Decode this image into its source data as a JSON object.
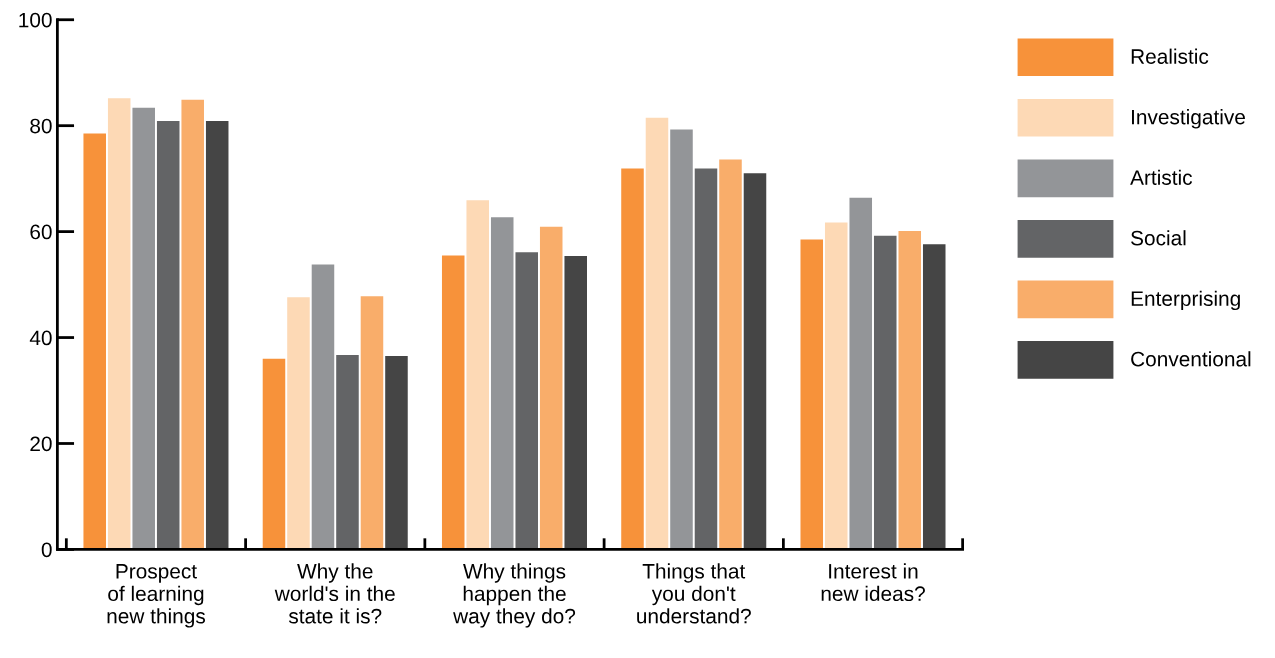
{
  "chart_data": {
    "type": "bar",
    "categories": [
      "Prospect\nof learning\nnew things",
      "Why the\nworld's in the\nstate it is?",
      "Why things\nhappen the\nway they do?",
      "Things that\nyou don't\nunderstand?",
      "Interest in\nnew ideas?"
    ],
    "series": [
      {
        "name": "Realistic",
        "color": "#f7923a",
        "values": [
          78.5,
          36.0,
          55.5,
          71.9,
          58.5
        ]
      },
      {
        "name": "Investigative",
        "color": "#fdd9b5",
        "values": [
          85.2,
          47.6,
          65.9,
          81.5,
          61.7
        ]
      },
      {
        "name": "Artistic",
        "color": "#939598",
        "values": [
          83.4,
          53.8,
          62.7,
          79.3,
          66.4
        ]
      },
      {
        "name": "Social",
        "color": "#636466",
        "values": [
          80.9,
          36.7,
          56.1,
          71.9,
          59.2
        ]
      },
      {
        "name": "Enterprising",
        "color": "#f9ad6a",
        "values": [
          84.9,
          47.8,
          60.9,
          73.6,
          60.1
        ]
      },
      {
        "name": "Conventional",
        "color": "#454545",
        "values": [
          80.9,
          36.5,
          55.4,
          71.0,
          57.6
        ]
      }
    ],
    "ylim": [
      0,
      100
    ],
    "yticks": [
      0,
      20,
      40,
      60,
      80,
      100
    ],
    "grid": false,
    "legend": "right"
  }
}
